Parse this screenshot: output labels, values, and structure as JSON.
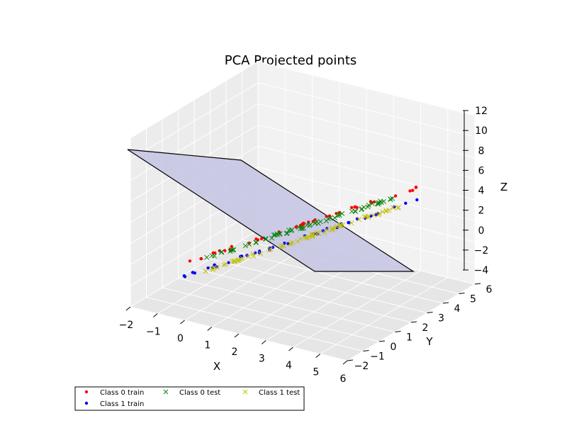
{
  "chart_data": {
    "type": "scatter",
    "title": "PCA Projected points",
    "xlabel": "X",
    "ylabel": "Y",
    "zlabel": "Z",
    "projection": "3d",
    "xlim": [
      -2,
      6
    ],
    "ylim": [
      -2,
      6
    ],
    "zlim": [
      -4,
      12
    ],
    "xticks": [
      "−2",
      "−1",
      "0",
      "1",
      "2",
      "3",
      "4",
      "5",
      "6"
    ],
    "yticks": [
      "−2",
      "−1",
      "0",
      "1",
      "2",
      "3",
      "4",
      "5",
      "6"
    ],
    "zticks": [
      "−4",
      "−2",
      "0",
      "2",
      "4",
      "6",
      "8",
      "10",
      "12"
    ],
    "grid": true,
    "legend": {
      "placement": "lower-left",
      "columns": 3,
      "entries": [
        {
          "label": "Class 0 train",
          "marker": "dot",
          "color": "#ff0000"
        },
        {
          "label": "Class 1 train",
          "marker": "dot",
          "color": "#0000ff"
        },
        {
          "label": "Class 0 test",
          "marker": "x",
          "color": "#008000"
        },
        {
          "label": "Class 1 test",
          "marker": "x",
          "color": "#bfbf00"
        }
      ]
    },
    "plane": {
      "color": "#c4c4e4",
      "description_points": [
        [
          -2,
          -2,
          8.5
        ],
        [
          3,
          -2,
          8.3
        ],
        [
          6,
          6,
          -4
        ],
        [
          1,
          6,
          -4
        ]
      ]
    },
    "series": [
      {
        "name": "Class 0 train",
        "color": "#ff0000",
        "marker": "dot",
        "start": [
          -1.4,
          0,
          0
        ],
        "end": [
          3.6,
          4.8,
          6
        ],
        "count": 40
      },
      {
        "name": "Class 1 train",
        "color": "#0000ff",
        "marker": "dot",
        "start": [
          -1.3,
          -0.3,
          -0.3
        ],
        "end": [
          4.0,
          5.0,
          5.0
        ],
        "count": 40
      },
      {
        "name": "Class 0 test",
        "color": "#008000",
        "marker": "x",
        "start": [
          -0.8,
          0.5,
          0.8
        ],
        "end": [
          3.2,
          4.2,
          5.3
        ],
        "count": 70
      },
      {
        "name": "Class 1 test",
        "color": "#bfbf00",
        "marker": "x",
        "start": [
          -0.5,
          0.4,
          0.5
        ],
        "end": [
          3.4,
          4.2,
          4.8
        ],
        "count": 70
      }
    ]
  }
}
